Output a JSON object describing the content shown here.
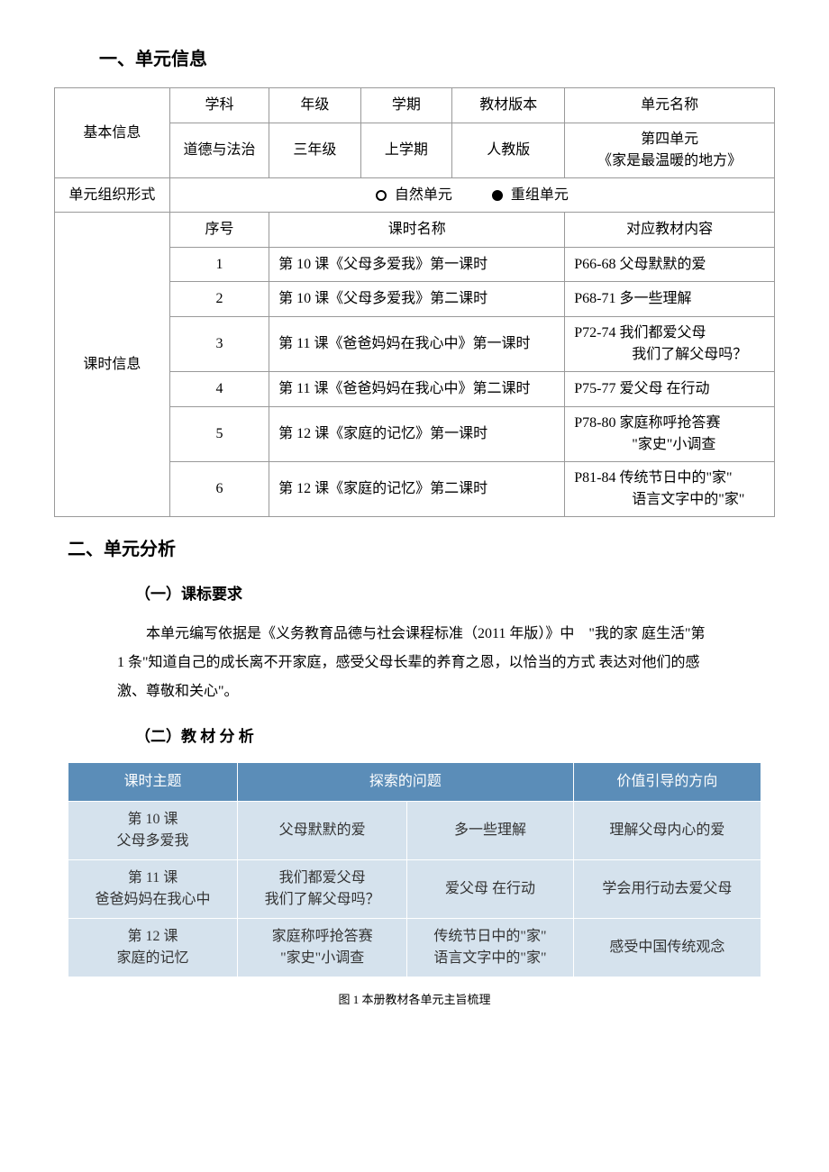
{
  "section1": {
    "heading": "一、单元信息",
    "basicInfoLabel": "基本信息",
    "headers": [
      "学科",
      "年级",
      "学期",
      "教材版本",
      "单元名称"
    ],
    "values": [
      "道德与法治",
      "三年级",
      "上学期",
      "人教版",
      "第四单元\n《家是最温暖的地方》"
    ],
    "orgLabel": "单元组织形式",
    "radioOptions": [
      {
        "label": "自然单元",
        "selected": false
      },
      {
        "label": "重组单元",
        "selected": true
      }
    ],
    "lessonInfoLabel": "课时信息",
    "lessonHeaders": [
      "序号",
      "课时名称",
      "对应教材内容"
    ],
    "lessons": [
      {
        "num": "1",
        "name": "第 10 课《父母多爱我》第一课时",
        "content": "P66-68  父母默默的爱"
      },
      {
        "num": "2",
        "name": "第 10 课《父母多爱我》第二课时",
        "content": "P68-71  多一些理解"
      },
      {
        "num": "3",
        "name": "第 11 课《爸爸妈妈在我心中》第一课时",
        "content": "P72-74  我们都爱父母\n　　　　我们了解父母吗？"
      },
      {
        "num": "4",
        "name": "第 11 课《爸爸妈妈在我心中》第二课时",
        "content": "P75-77  爱父母 在行动"
      },
      {
        "num": "5",
        "name": "第 12 课《家庭的记忆》第一课时",
        "content": "P78-80  家庭称呼抢答赛\n　　　　\"家史\"小调查"
      },
      {
        "num": "6",
        "name": "第 12 课《家庭的记忆》第二课时",
        "content": "P81-84  传统节日中的\"家\"\n　　　　语言文字中的\"家\""
      }
    ]
  },
  "section2": {
    "heading": "二、单元分析",
    "sub1": "（一）课标要求",
    "para1": "本单元编写依据是《义务教育品德与社会课程标准（2011 年版）》中　\"我的家 庭生活\"第 1 条\"知道自己的成长离不开家庭，感受父母长辈的养育之恩，以恰当的方式 表达对他们的感激、尊敬和关心\"。",
    "sub2": "（二）教 材 分 析",
    "analysisTable": {
      "headers": [
        "课时主题",
        "探索的问题",
        "价值引导的方向"
      ],
      "headerColor": "#5b8db8",
      "rowColor": "#d5e2ed",
      "rows": [
        {
          "theme": "第 10 课\n父母多爱我",
          "q1": "父母默默的爱",
          "q2": "多一些理解",
          "value": "理解父母内心的爱"
        },
        {
          "theme": "第 11 课\n爸爸妈妈在我心中",
          "q1": "我们都爱父母\n我们了解父母吗？",
          "q2": "爱父母 在行动",
          "value": "学会用行动去爱父母"
        },
        {
          "theme": "第 12 课\n家庭的记忆",
          "q1": "家庭称呼抢答赛\n\"家史\"小调查",
          "q2": "传统节日中的\"家\"\n语言文字中的\"家\"",
          "value": "感受中国传统观念"
        }
      ]
    },
    "caption": "图 1 本册教材各单元主旨梳理"
  }
}
